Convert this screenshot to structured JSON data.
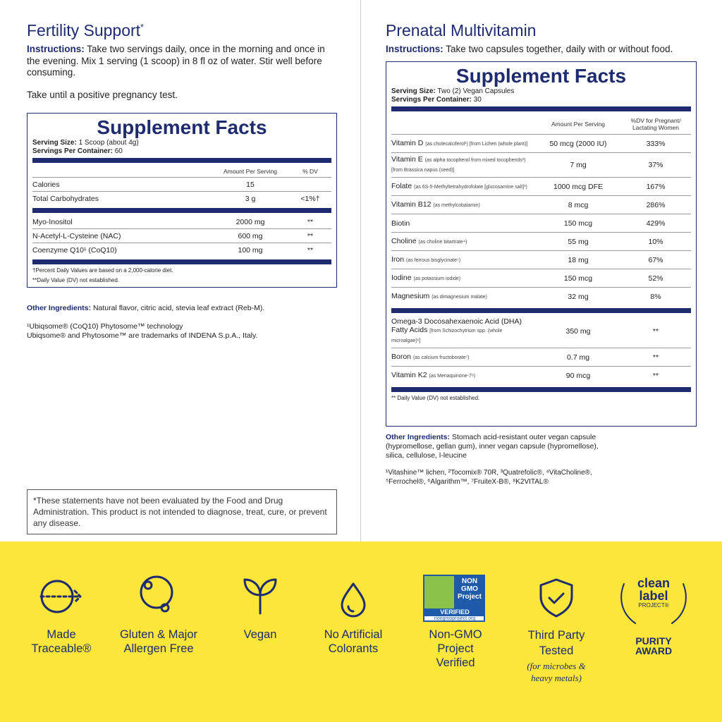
{
  "left": {
    "title": "Fertility Support",
    "title_mark": "*",
    "instructions_label": "Instructions:",
    "instructions": "Take two servings daily, once in the morning and once in the evening. Mix 1 serving (1 scoop) in 8 fl oz of water. Stir well before consuming.",
    "note": "Take until a positive pregnancy test.",
    "facts": {
      "heading": "Supplement Facts",
      "serving_size_label": "Serving Size:",
      "serving_size": "1 Scoop (about 4g)",
      "servings_label": "Servings Per Container:",
      "servings": "60",
      "col_amount": "Amount Per Serving",
      "col_dv": "% DV",
      "groups": [
        [
          {
            "name": "Calories",
            "amount": "15"
          },
          {
            "name": "Total Carbohydrates",
            "amount": "3 g",
            "dv": "<1%†"
          }
        ],
        [
          {
            "name": "Myo-Inositol",
            "amount": "2000 mg",
            "dv": "**"
          },
          {
            "name": "N-Acetyl-L-Cysteine (NAC)",
            "amount": "600 mg",
            "dv": "**"
          },
          {
            "name": "Coenzyme Q10¹ (CoQ10)",
            "amount": "100 mg",
            "dv": "**"
          }
        ]
      ],
      "footnotes": [
        "†Percent Daily Values are based on a 2,000-calorie diet.",
        "**Daily Value (DV) not established."
      ]
    },
    "other_label": "Other Ingredients:",
    "other": "Natural flavor, citric acid, stevia leaf extract (Reb-M).",
    "trademarks": [
      "¹Ubiqsome® (CoQ10) Phytosome™ technology",
      "Ubiqsome® and Phytosome™ are trademarks of  INDENA  S.p.A., Italy."
    ],
    "disclaimer": "*These statements have not been evaluated by the Food and Drug Administration. This product is not intended to diagnose, treat, cure, or prevent any disease."
  },
  "right": {
    "title": "Prenatal Multivitamin",
    "instructions_label": "Instructions:",
    "instructions": "Take two capsules together, daily with or without food.",
    "facts": {
      "heading": "Supplement Facts",
      "serving_size_label": "Serving Size:",
      "serving_size": "Two (2) Vegan Capsules",
      "servings_label": "Servings Per Container:",
      "servings": "30",
      "col_amount": "Amount Per Serving",
      "col_dv": "%DV for Pregnant/ Lactating Women",
      "groups": [
        [
          {
            "name": "Vitamin D",
            "detail": "(as cholecalciferol¹) [from Lichen (whole plant)]",
            "amount": "50 mcg (2000 IU)",
            "dv": "333%"
          },
          {
            "name": "Vitamin E",
            "detail": "(as alpha tocopherol from mixed tocopherols²) [from Brassica napus (seed)]",
            "amount": "7 mg",
            "dv": "37%"
          },
          {
            "name": "Folate",
            "detail": "(as 6S-5-Methyltetrahydrofolate [glucosamine salt]³)",
            "amount": "1000 mcg DFE",
            "dv": "167%"
          },
          {
            "name": "Vitamin B12",
            "detail": "(as methylcobalamin)",
            "amount": "8 mcg",
            "dv": "286%"
          },
          {
            "name": "Biotin",
            "amount": "150 mcg",
            "dv": "429%"
          },
          {
            "name": "Choline",
            "detail": "(as choline bitartrate⁴)",
            "amount": "55 mg",
            "dv": "10%"
          },
          {
            "name": "Iron",
            "detail": "(as ferrous bisglycinate⁵)",
            "amount": "18 mg",
            "dv": "67%"
          },
          {
            "name": "Iodine",
            "detail": "(as potassium iodide)",
            "amount": "150 mcg",
            "dv": "52%"
          },
          {
            "name": "Magnesium",
            "detail": "(as dimagnesium malate)",
            "amount": "32 mg",
            "dv": "8%"
          }
        ],
        [
          {
            "name": "Omega-3 Docosahexaenoic Acid (DHA) Fatty Acids",
            "detail": "[from Schizochytrium spp. (whole microalgae)⁶]",
            "amount": "350 mg",
            "dv": "**"
          },
          {
            "name": "Boron",
            "detail": "(as calcium fructoborate⁷)",
            "amount": "0.7 mg",
            "dv": "**"
          },
          {
            "name": "Vitamin K2",
            "detail": "(as Menaquinone-7⁸)",
            "amount": "90 mcg",
            "dv": "**"
          }
        ]
      ],
      "footnotes": [
        "** Daily Value (DV) not established."
      ]
    },
    "other_label": "Other Ingredients:",
    "other": "Stomach acid-resistant outer vegan capsule (hypromellose, gellan gum), inner vegan capsule (hypromellose), silica, cellulose, l-leucine",
    "trademarks": [
      "¹Vitashine™ lichen, ²Tocomix® 70R, ³Quatrefolic®, ⁴VitaCholine®, ⁵Ferrochel®, ⁶Algarithm™, ⁷FruiteX-B®, ⁸K2VITAL®"
    ]
  },
  "badges": [
    {
      "label": "Made Traceable®"
    },
    {
      "label": "Gluten & Major Allergen Free"
    },
    {
      "label": "Vegan"
    },
    {
      "label": "No Artificial Colorants"
    },
    {
      "label": "Non-GMO Project Verified",
      "logo_lines": [
        "NON",
        "GMO",
        "Project",
        "VERIFIED",
        "nongmoproject.org"
      ]
    },
    {
      "label": "Third Party Tested",
      "note": "(for microbes & heavy metals)"
    },
    {
      "label": "PURITY AWARD",
      "logo_lines": [
        "clean",
        "label",
        "PROJECT®"
      ]
    }
  ]
}
